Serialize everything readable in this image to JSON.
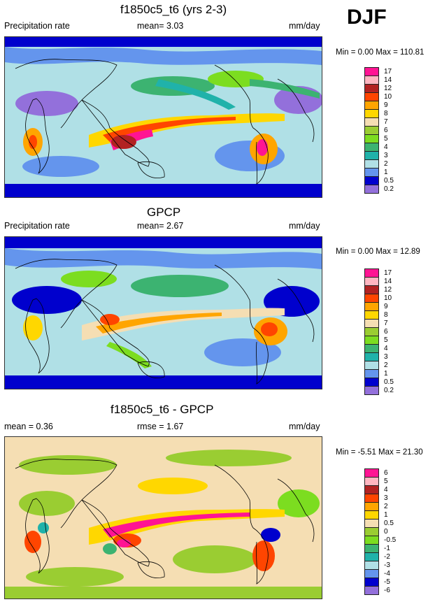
{
  "season": "DJF",
  "panels": [
    {
      "title": "f1850c5_t6 (yrs 2-3)",
      "left_text": "Precipitation rate",
      "center_text": "mean=  3.03",
      "units": "mm/day",
      "minmax": "Min =  0.00 Max = 110.81",
      "legend": {
        "labels": [
          "17",
          "14",
          "12",
          "10",
          "9",
          "8",
          "7",
          "6",
          "5",
          "4",
          "3",
          "2",
          "1",
          "0.5",
          "0.2"
        ],
        "colors": [
          "#ff1493",
          "#ffb6c1",
          "#b22222",
          "#ff4500",
          "#ffa500",
          "#ffd700",
          "#f5deb3",
          "#9acd32",
          "#7cdd20",
          "#3cb371",
          "#20b2aa",
          "#b0e0e6",
          "#6495ed",
          "#0000cd",
          "#9370db"
        ]
      }
    },
    {
      "title": "GPCP",
      "left_text": "Precipitation rate",
      "center_text": "mean=  2.67",
      "units": "mm/day",
      "minmax": "Min =  0.00 Max = 12.89",
      "legend": {
        "labels": [
          "17",
          "14",
          "12",
          "10",
          "9",
          "8",
          "7",
          "6",
          "5",
          "4",
          "3",
          "2",
          "1",
          "0.5",
          "0.2"
        ],
        "colors": [
          "#ff1493",
          "#ffb6c1",
          "#b22222",
          "#ff4500",
          "#ffa500",
          "#ffd700",
          "#f5deb3",
          "#9acd32",
          "#7cdd20",
          "#3cb371",
          "#20b2aa",
          "#b0e0e6",
          "#6495ed",
          "#0000cd",
          "#9370db"
        ]
      }
    },
    {
      "title": "f1850c5_t6 - GPCP",
      "left_text": "mean =  0.36",
      "center_text": "rmse =  1.67",
      "units": "mm/day",
      "minmax": "Min = -5.51 Max = 21.30",
      "legend": {
        "labels": [
          "6",
          "5",
          "4",
          "3",
          "2",
          "1",
          "0.5",
          "0",
          "-0.5",
          "-1",
          "-2",
          "-3",
          "-4",
          "-5",
          "-6"
        ],
        "colors": [
          "#ff1493",
          "#ffb6c1",
          "#b22222",
          "#ff4500",
          "#ffa500",
          "#ffd700",
          "#f5deb3",
          "#9acd32",
          "#7cdd20",
          "#3cb371",
          "#20b2aa",
          "#b0e0e6",
          "#6495ed",
          "#0000cd",
          "#9370db"
        ]
      }
    }
  ]
}
